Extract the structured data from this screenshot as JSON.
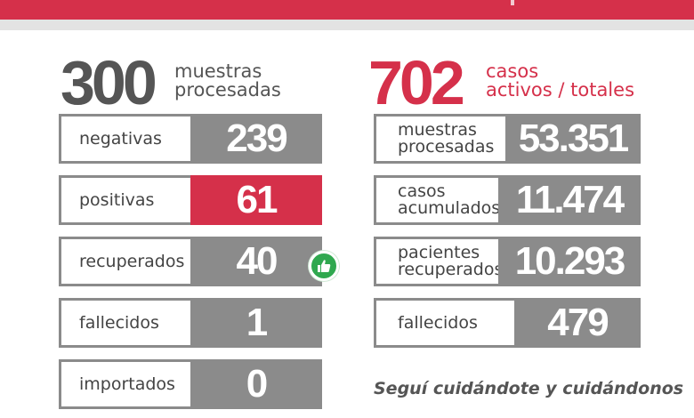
{
  "left": {
    "number": "300",
    "caption": "muestras\nprocesadas",
    "rows": [
      {
        "label": "negativas",
        "value": "239"
      },
      {
        "label": "positivas",
        "value": "61"
      },
      {
        "label": "recuperados",
        "value": "40"
      },
      {
        "label": "fallecidos",
        "value": "1"
      },
      {
        "label": "importados",
        "value": "0"
      }
    ]
  },
  "right": {
    "number": "702",
    "caption": "casos\nactivos / totales",
    "rows": [
      {
        "label": "muestras\nprocesadas",
        "value": "53.351"
      },
      {
        "label": "casos\nacumulados",
        "value": "11.474"
      },
      {
        "label": "pacientes\nrecuperados",
        "value": "10.293"
      },
      {
        "label": "fallecidos",
        "value": "479"
      }
    ]
  },
  "slogan": "Seguí cuidándote y cuidándonos",
  "icons": {
    "recovered": "thumbs-up-icon"
  },
  "colors": {
    "accent_red": "#d5304a",
    "gray": "#8b8b8b",
    "icon_green": "#2fa84f"
  }
}
